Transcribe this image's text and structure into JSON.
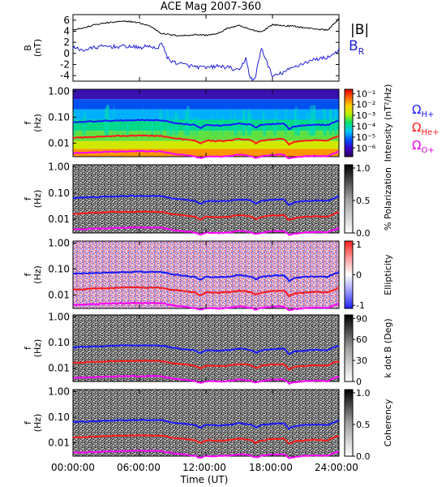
{
  "figure": {
    "title": "ACE Mag 2007-360",
    "time_axis": {
      "label": "Time (UT)",
      "ticks": [
        "00:00:00",
        "06:00:00",
        "12:00:00",
        "18:00:00",
        "24:00:00"
      ],
      "tick_hours": [
        0,
        6,
        12,
        18,
        24
      ]
    },
    "legend": {
      "b_magnitude": "|B|",
      "b_radial_symbol": "B",
      "b_radial_sub": "R",
      "omega": "Ω",
      "h_sub": "H+",
      "he_sub": "He+",
      "o_sub": "O+"
    }
  },
  "colors": {
    "b_magnitude": "#000000",
    "b_radial": "#1f1fd6",
    "h_cyclotron": "#1a1aff",
    "he_cyclotron": "#ff1a1a",
    "o_cyclotron": "#ff00ff"
  },
  "chart_data": [
    {
      "type": "line",
      "title": "ACE Mag 2007-360",
      "ylabel_main": "B",
      "ylabel_unit": "(nT)",
      "yticks": [
        "6",
        "4",
        "2",
        "0",
        "-2",
        "-4"
      ],
      "ytick_values": [
        6,
        4,
        2,
        0,
        -2,
        -4
      ],
      "ylim": [
        -5,
        7
      ],
      "xlim": [
        0,
        24
      ],
      "series": [
        {
          "name": "|B|",
          "x": [
            0,
            1,
            2,
            3,
            4,
            5,
            6,
            7,
            8,
            9,
            10,
            11,
            12,
            13,
            14,
            15,
            16,
            17,
            18,
            19,
            20,
            21,
            22,
            23,
            24
          ],
          "values": [
            4.3,
            4.6,
            5.2,
            5.5,
            5.7,
            5.8,
            5.5,
            4.9,
            3.6,
            3.3,
            3.2,
            3.4,
            3.3,
            3.5,
            4.6,
            5.0,
            4.3,
            3.9,
            5.2,
            5.0,
            4.9,
            4.6,
            4.4,
            4.2,
            6.3
          ]
        },
        {
          "name": "B_R",
          "x": [
            0,
            1,
            2,
            3,
            4,
            5,
            6,
            7,
            7.6,
            8,
            8.5,
            9,
            10,
            11,
            12,
            13,
            14,
            15,
            15.6,
            16,
            16.4,
            17,
            18,
            19,
            20,
            21,
            22,
            23,
            24
          ],
          "values": [
            1.0,
            0.6,
            1.1,
            1.3,
            1.2,
            1.3,
            1.0,
            1.4,
            0.6,
            2.2,
            -0.8,
            -1.5,
            -2.0,
            -2.4,
            -2.6,
            -2.3,
            -2.5,
            -3.2,
            -0.8,
            -4.5,
            -4.8,
            1.0,
            -4.2,
            -3.4,
            -2.4,
            -1.6,
            -1.0,
            -0.7,
            0.6
          ]
        }
      ]
    },
    {
      "type": "heatmap",
      "ylabel_main": "f",
      "ylabel_unit": "(Hz)",
      "yticks": [
        "1.00",
        "0.10",
        "0.01"
      ],
      "ytick_values": [
        1.0,
        0.1,
        0.01
      ],
      "ylim": [
        0.003,
        1.2
      ],
      "yscale": "log",
      "xlim": [
        0,
        24
      ],
      "colorbar": {
        "label": "Intensity (nT²/Hz)",
        "scale": "log",
        "ticks": [
          "10⁻¹",
          "10⁻²",
          "10⁻³",
          "10⁻⁴",
          "10⁻⁵",
          "10⁻⁶"
        ],
        "tick_exponents": [
          -1,
          -2,
          -3,
          -4,
          -5,
          -6
        ],
        "range_exponent": [
          -6.8,
          -0.6
        ],
        "map": "rainbow"
      }
    },
    {
      "type": "heatmap",
      "ylabel_main": "f",
      "ylabel_unit": "(Hz)",
      "yticks": [
        "1.00",
        "0.10",
        "0.01"
      ],
      "ytick_values": [
        1.0,
        0.1,
        0.01
      ],
      "ylim": [
        0.003,
        1.2
      ],
      "yscale": "log",
      "xlim": [
        0,
        24
      ],
      "colorbar": {
        "label": "% Polarization",
        "scale": "linear",
        "ticks": [
          "1.0",
          "0.5",
          "0.0"
        ],
        "tick_values": [
          1.0,
          0.5,
          0.0
        ],
        "range": [
          0,
          1.05
        ],
        "map": "gray"
      }
    },
    {
      "type": "heatmap",
      "ylabel_main": "f",
      "ylabel_unit": "(Hz)",
      "yticks": [
        "1.00",
        "0.10",
        "0.01"
      ],
      "ytick_values": [
        1.0,
        0.1,
        0.01
      ],
      "ylim": [
        0.003,
        1.2
      ],
      "yscale": "log",
      "xlim": [
        0,
        24
      ],
      "colorbar": {
        "label": "Ellipticity",
        "scale": "linear",
        "ticks": [
          "1",
          "0",
          "-1"
        ],
        "tick_values": [
          1,
          0,
          -1
        ],
        "range": [
          -1.1,
          1.1
        ],
        "map": "bwr"
      }
    },
    {
      "type": "heatmap",
      "ylabel_main": "f",
      "ylabel_unit": "(Hz)",
      "yticks": [
        "1.00",
        "0.10",
        "0.01"
      ],
      "ytick_values": [
        1.0,
        0.1,
        0.01
      ],
      "ylim": [
        0.003,
        1.2
      ],
      "yscale": "log",
      "xlim": [
        0,
        24
      ],
      "colorbar": {
        "label": "k dot B (Deg)",
        "scale": "linear",
        "ticks": [
          "90",
          "60",
          "30",
          "0"
        ],
        "tick_values": [
          90,
          60,
          30,
          0
        ],
        "range": [
          0,
          95
        ],
        "map": "gray"
      }
    },
    {
      "type": "heatmap",
      "ylabel_main": "f",
      "ylabel_unit": "(Hz)",
      "yticks": [
        "1.00",
        "0.10",
        "0.01"
      ],
      "ytick_values": [
        1.0,
        0.1,
        0.01
      ],
      "ylim": [
        0.003,
        1.2
      ],
      "yscale": "log",
      "xlim": [
        0,
        24
      ],
      "colorbar": {
        "label": "Coherency",
        "scale": "linear",
        "ticks": [
          "1.0",
          "0.5",
          "0.0"
        ],
        "tick_values": [
          1.0,
          0.5,
          0.0
        ],
        "range": [
          0,
          1.05
        ],
        "map": "gray"
      }
    }
  ],
  "cyclotron_frequencies": {
    "x": [
      0,
      2,
      4,
      6,
      8,
      9,
      10,
      11,
      11.5,
      12,
      13,
      14,
      15,
      16,
      16.5,
      17,
      18,
      19,
      19.5,
      20,
      21,
      22,
      23,
      24
    ],
    "h_plus": [
      0.065,
      0.07,
      0.075,
      0.078,
      0.076,
      0.062,
      0.055,
      0.05,
      0.038,
      0.05,
      0.048,
      0.05,
      0.058,
      0.052,
      0.04,
      0.05,
      0.055,
      0.058,
      0.035,
      0.045,
      0.05,
      0.052,
      0.05,
      0.075
    ],
    "he_plus": [
      0.016,
      0.0175,
      0.019,
      0.0195,
      0.019,
      0.0155,
      0.014,
      0.0125,
      0.0095,
      0.0125,
      0.012,
      0.0125,
      0.0145,
      0.013,
      0.01,
      0.0125,
      0.014,
      0.0145,
      0.009,
      0.0113,
      0.0125,
      0.013,
      0.0125,
      0.019
    ],
    "o_plus": [
      0.0041,
      0.0044,
      0.0047,
      0.0049,
      0.0048,
      0.0039,
      0.0035,
      0.0031,
      0.0026,
      0.0031,
      0.003,
      0.0031,
      0.0036,
      0.0032,
      0.0027,
      0.0031,
      0.0035,
      0.0036,
      0.0025,
      0.0028,
      0.0031,
      0.0032,
      0.0031,
      0.0047
    ]
  }
}
